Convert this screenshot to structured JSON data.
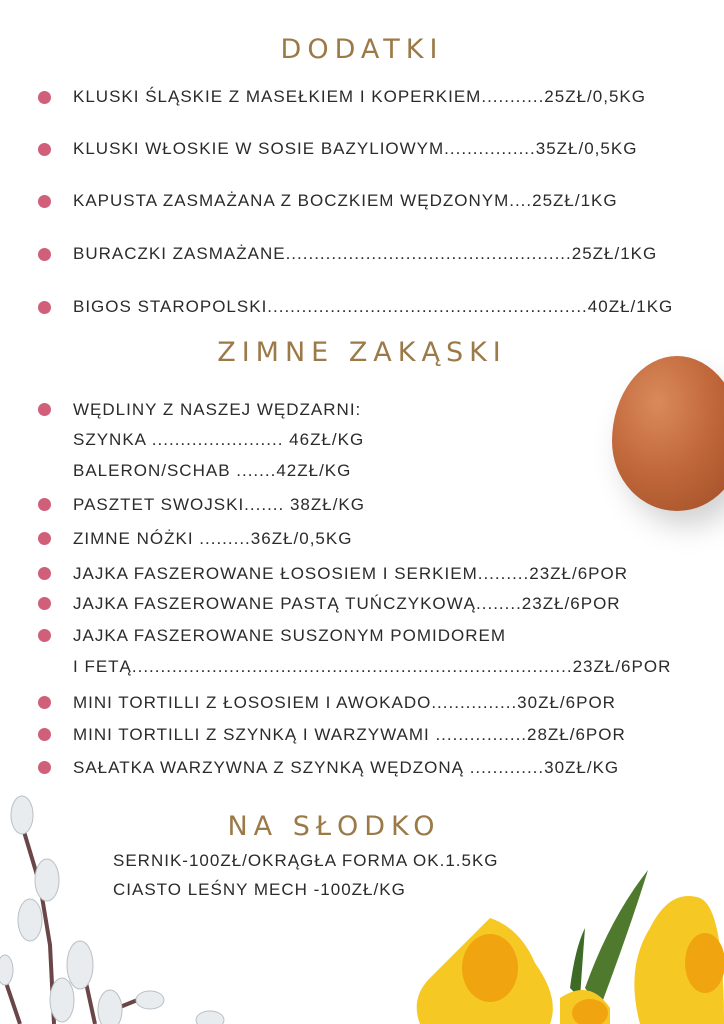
{
  "colors": {
    "heading": "#9b7a48",
    "bullet": "#d0607a",
    "text": "#2b2b2b"
  },
  "dodatki": {
    "title": "DODATKI",
    "items": [
      "KLUSKI ŚLĄSKIE Z MASEŁKIEM I KOPERKIEM...........25ZŁ/0,5KG",
      "KLUSKI WŁOSKIE W SOSIE BAZYLIOWYM................35ZŁ/0,5KG",
      "KAPUSTA ZASMAŻANA Z BOCZKIEM WĘDZONYM....25ZŁ/1KG",
      "BURACZKI ZASMAŻANE..................................................25ZŁ/1KG",
      "BIGOS STAROPOLSKI........................................................40ZŁ/1KG"
    ]
  },
  "zimne": {
    "title": "ZIMNE ZAKĄSKI",
    "rows": [
      {
        "text": "WĘDLINY Z NASZEJ WĘDZARNI:",
        "bullet": true
      },
      {
        "text": "SZYNKA ....................... 46ZŁ/KG",
        "bullet": false
      },
      {
        "text": "BALERON/SCHAB .......42ZŁ/KG",
        "bullet": false
      },
      {
        "text": "PASZTET SWOJSKI....... 38ZŁ/KG",
        "bullet": true
      },
      {
        "text": "ZIMNE NÓŻKI .........36ZŁ/0,5KG",
        "bullet": true
      },
      {
        "text": "JAJKA FASZEROWANE ŁOSOSIEM I SERKIEM.........23ZŁ/6POR",
        "bullet": true
      },
      {
        "text": "JAJKA FASZEROWANE PASTĄ TUŃCZYKOWĄ........23ZŁ/6POR",
        "bullet": true
      },
      {
        "text": "JAJKA FASZEROWANE SUSZONYM POMIDOREM",
        "bullet": true
      },
      {
        "text": "I FETĄ.............................................................................23ZŁ/6POR",
        "bullet": false
      },
      {
        "text": "MINI TORTILLI Z ŁOSOSIEM I AWOKADO...............30ZŁ/6POR",
        "bullet": true
      },
      {
        "text": "MINI TORTILLI Z SZYNKĄ I WARZYWAMI ................28ZŁ/6POR",
        "bullet": true
      },
      {
        "text": "SAŁATKA WARZYWNA Z SZYNKĄ WĘDZONĄ .............30ZŁ/KG",
        "bullet": true
      }
    ]
  },
  "slodko": {
    "title": "NA SŁODKO",
    "items": [
      "SERNIK-100ZŁ/OKRĄGŁA FORMA OK.1.5KG",
      "CIASTO LEŚNY MECH -100ZŁ/KG"
    ]
  },
  "decorations": [
    "egg-image",
    "pussy-willow-image",
    "daffodil-image"
  ]
}
